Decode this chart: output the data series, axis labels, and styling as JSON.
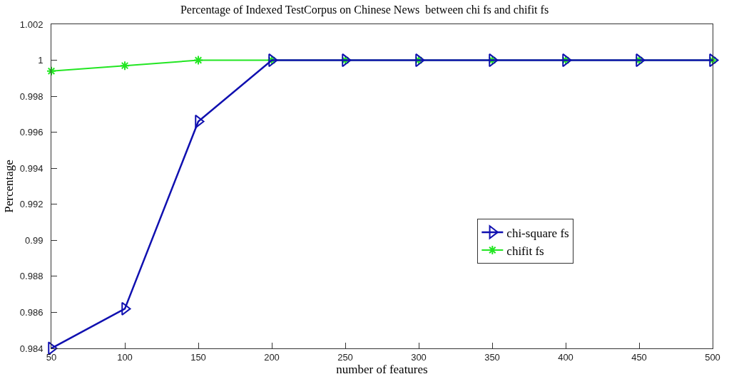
{
  "chart_data": {
    "type": "line",
    "title": "Percentage of Indexed TestCorpus on Chinese News  between chi fs and chifit fs",
    "xlabel": "number of features",
    "ylabel": "Percentage",
    "x": [
      50,
      100,
      150,
      200,
      250,
      300,
      350,
      400,
      450,
      500
    ],
    "series": [
      {
        "name": "chi-square fs",
        "color": "#1010b0",
        "marker": "triangle",
        "values": [
          0.984,
          0.9862,
          0.9966,
          1,
          1,
          1,
          1,
          1,
          1,
          1
        ]
      },
      {
        "name": "chifit fs",
        "color": "#22e622",
        "marker": "cross",
        "values": [
          0.9994,
          0.9997,
          1,
          1,
          1,
          1,
          1,
          1,
          1,
          1
        ]
      }
    ],
    "xlim": [
      50,
      500
    ],
    "xticks": [
      50,
      100,
      150,
      200,
      250,
      300,
      350,
      400,
      450,
      500
    ],
    "ylim": [
      0.984,
      1.002
    ],
    "yticks": [
      0.984,
      0.986,
      0.988,
      0.99,
      0.992,
      0.994,
      0.996,
      0.998,
      1,
      1.002
    ],
    "grid": false,
    "legend": "right",
    "line_style": "solid"
  }
}
